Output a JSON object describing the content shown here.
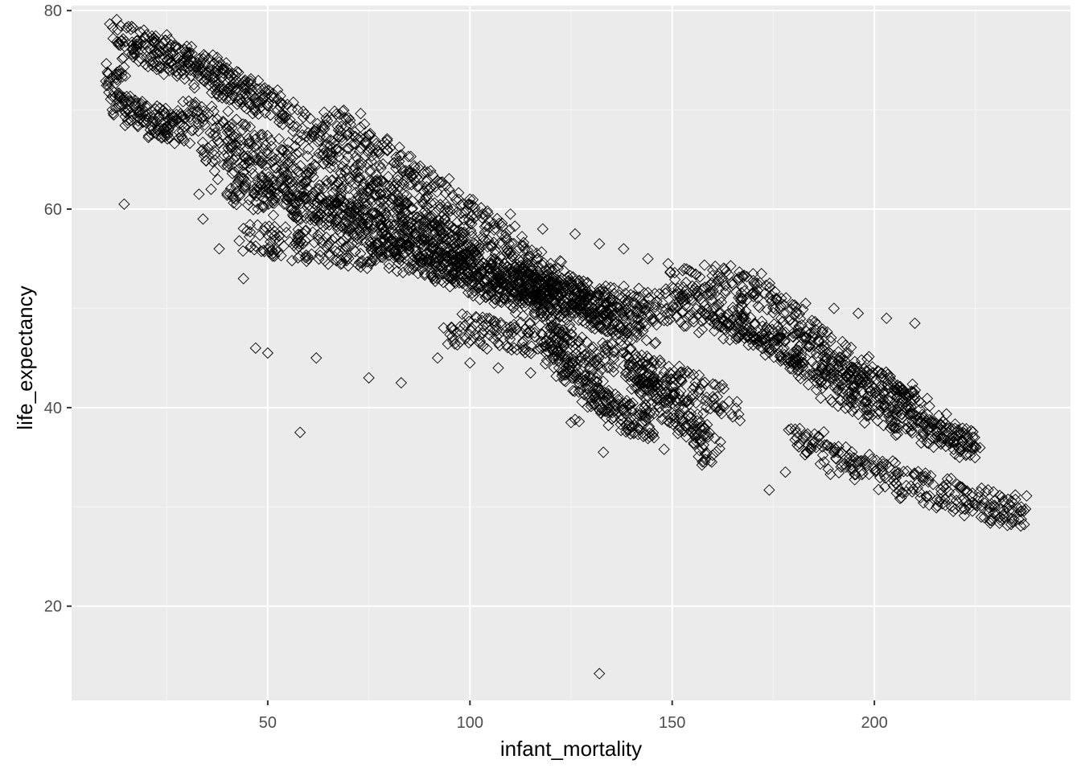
{
  "chart_data": {
    "type": "scatter",
    "title": "",
    "xlabel": "infant_mortality",
    "ylabel": "life_expectancy",
    "xlim": [
      1.5,
      248.5
    ],
    "ylim": [
      10.5,
      80.5
    ],
    "x_ticks": [
      50,
      100,
      150,
      200
    ],
    "y_ticks": [
      20,
      40,
      60,
      80
    ],
    "grid": true,
    "marker": "diamond-open",
    "colors": {
      "panel": "#ebebeb",
      "grid_major": "#ffffff",
      "grid_minor": "#f5f5f5",
      "marker": "#000000",
      "tick_label": "#4d4d4d"
    },
    "trends": [
      {
        "x": [
          12,
          20,
          30,
          40,
          50
        ],
        "y": [
          77.5,
          76.5,
          75,
          73,
          70.5
        ]
      },
      {
        "x": [
          20,
          30,
          40,
          50,
          60,
          70,
          80,
          90,
          100
        ],
        "y": [
          76,
          74.5,
          72.5,
          70.5,
          68,
          65,
          62,
          59,
          56
        ]
      },
      {
        "x": [
          30,
          40,
          50,
          60,
          70,
          80,
          90,
          100,
          110,
          120
        ],
        "y": [
          70,
          68,
          66,
          64,
          62,
          60,
          58,
          56,
          54,
          52
        ]
      },
      {
        "x": [
          35,
          45,
          55,
          65,
          75,
          85,
          95,
          105,
          115,
          125
        ],
        "y": [
          66,
          64,
          62,
          60,
          58,
          56,
          54,
          52,
          50,
          48
        ]
      },
      {
        "x": [
          40,
          50,
          60,
          70,
          80,
          90,
          100,
          110,
          120,
          130,
          140
        ],
        "y": [
          62,
          61,
          60,
          59,
          57.5,
          56,
          54.5,
          53,
          51.5,
          50,
          48
        ]
      },
      {
        "x": [
          45,
          55,
          65,
          75,
          85,
          95,
          105,
          115,
          125,
          135,
          145
        ],
        "y": [
          57,
          56.5,
          56,
          55.5,
          55,
          54,
          53,
          52,
          50.5,
          49,
          47.5
        ]
      },
      {
        "x": [
          65,
          75,
          85,
          95,
          105,
          115,
          125,
          135
        ],
        "y": [
          69.5,
          67,
          64,
          61,
          58,
          55,
          52,
          49
        ]
      },
      {
        "x": [
          95,
          105,
          115,
          125,
          135,
          145,
          155,
          165
        ],
        "y": [
          48,
          47.5,
          47,
          46,
          45,
          43.5,
          42,
          40
        ]
      },
      {
        "x": [
          110,
          120,
          130,
          140,
          150,
          160,
          170,
          180,
          190,
          200,
          210
        ],
        "y": [
          52,
          51.5,
          51,
          50.5,
          50,
          49,
          47.5,
          46,
          44,
          42,
          40
        ]
      },
      {
        "x": [
          150,
          160,
          170,
          180,
          190,
          200,
          210,
          220
        ],
        "y": [
          52,
          53,
          52,
          49,
          46,
          43,
          40,
          37
        ]
      },
      {
        "x": [
          160,
          170,
          180,
          190,
          200,
          210,
          220,
          225
        ],
        "y": [
          50,
          48,
          45,
          42,
          40,
          38,
          37,
          36
        ]
      },
      {
        "x": [
          180,
          190,
          200,
          210,
          220,
          230,
          237
        ],
        "y": [
          37,
          35,
          33.5,
          32,
          31,
          30,
          29.5
        ]
      },
      {
        "x": [
          12,
          14,
          20,
          25,
          30
        ],
        "y": [
          74,
          70,
          69,
          68.5,
          68
        ]
      },
      {
        "x": [
          120,
          125,
          130,
          135,
          140,
          145
        ],
        "y": [
          46,
          44,
          42,
          40,
          39,
          38
        ]
      },
      {
        "x": [
          140,
          145,
          150,
          155,
          160
        ],
        "y": [
          44,
          42,
          40,
          38,
          35
        ]
      }
    ],
    "points": [
      {
        "x": 14.5,
        "y": 60.5
      },
      {
        "x": 58,
        "y": 37.5
      },
      {
        "x": 132,
        "y": 13.2
      },
      {
        "x": 174,
        "y": 31.7
      },
      {
        "x": 178,
        "y": 33.5
      },
      {
        "x": 133,
        "y": 35.5
      },
      {
        "x": 196,
        "y": 49.5
      },
      {
        "x": 203,
        "y": 49
      },
      {
        "x": 210,
        "y": 48.5
      },
      {
        "x": 190,
        "y": 50
      },
      {
        "x": 183,
        "y": 50.5
      },
      {
        "x": 177,
        "y": 51
      },
      {
        "x": 170,
        "y": 51.5
      },
      {
        "x": 224,
        "y": 36
      },
      {
        "x": 225,
        "y": 30.2
      },
      {
        "x": 231,
        "y": 29.8
      },
      {
        "x": 237,
        "y": 29.6
      },
      {
        "x": 216,
        "y": 30.5
      },
      {
        "x": 160,
        "y": 35.2
      },
      {
        "x": 148,
        "y": 35.8
      },
      {
        "x": 141,
        "y": 42
      },
      {
        "x": 143,
        "y": 42.5
      },
      {
        "x": 142,
        "y": 41.5
      },
      {
        "x": 144,
        "y": 41.8
      },
      {
        "x": 126,
        "y": 38.8
      },
      {
        "x": 125,
        "y": 38.5
      },
      {
        "x": 127,
        "y": 38.6
      },
      {
        "x": 86,
        "y": 63.5
      },
      {
        "x": 90,
        "y": 62
      },
      {
        "x": 100,
        "y": 61
      },
      {
        "x": 110,
        "y": 59.5
      },
      {
        "x": 118,
        "y": 58
      },
      {
        "x": 126,
        "y": 57.5
      },
      {
        "x": 132,
        "y": 56.5
      },
      {
        "x": 138,
        "y": 56
      },
      {
        "x": 144,
        "y": 55
      },
      {
        "x": 149,
        "y": 54.5
      },
      {
        "x": 153,
        "y": 54
      },
      {
        "x": 47,
        "y": 46
      },
      {
        "x": 50,
        "y": 45.5
      },
      {
        "x": 62,
        "y": 45
      },
      {
        "x": 75,
        "y": 43
      },
      {
        "x": 83,
        "y": 42.5
      },
      {
        "x": 92,
        "y": 45
      },
      {
        "x": 100,
        "y": 44.5
      },
      {
        "x": 107,
        "y": 44
      },
      {
        "x": 115,
        "y": 43.5
      },
      {
        "x": 122,
        "y": 44
      },
      {
        "x": 60,
        "y": 55
      },
      {
        "x": 44,
        "y": 53
      },
      {
        "x": 38,
        "y": 56
      },
      {
        "x": 34,
        "y": 59
      },
      {
        "x": 33,
        "y": 61.5
      },
      {
        "x": 36,
        "y": 62
      },
      {
        "x": 42,
        "y": 61
      }
    ]
  }
}
